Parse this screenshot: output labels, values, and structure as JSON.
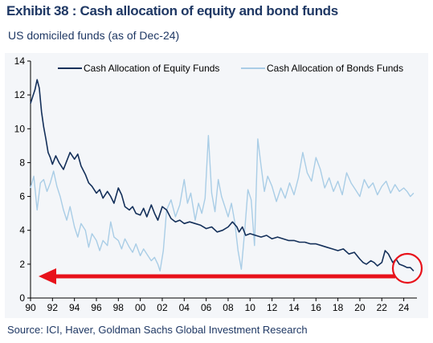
{
  "header": {
    "title": "Exhibit 38 : Cash allocation of equity and bond funds",
    "subtitle": "US domiciled funds (as of Dec-24)"
  },
  "footer": {
    "source": "Source: ICI, Haver, Goldman Sachs Global Investment Research"
  },
  "colors": {
    "equity": "#14305a",
    "bond": "#a9cde6",
    "arrow": "#e8121b",
    "title": "#1f3864"
  },
  "chart_data": {
    "type": "line",
    "title": "",
    "xlabel": "",
    "ylabel": "",
    "xlim": [
      1990,
      2025.2
    ],
    "ylim": [
      0,
      14
    ],
    "y_ticks": [
      0,
      2,
      4,
      6,
      8,
      10,
      12,
      14
    ],
    "x_ticks": [
      {
        "value": 1990,
        "label": "90"
      },
      {
        "value": 1992,
        "label": "92"
      },
      {
        "value": 1994,
        "label": "94"
      },
      {
        "value": 1996,
        "label": "96"
      },
      {
        "value": 1998,
        "label": "98"
      },
      {
        "value": 2000,
        "label": "00"
      },
      {
        "value": 2002,
        "label": "02"
      },
      {
        "value": 2004,
        "label": "04"
      },
      {
        "value": 2006,
        "label": "06"
      },
      {
        "value": 2008,
        "label": "08"
      },
      {
        "value": 2010,
        "label": "10"
      },
      {
        "value": 2012,
        "label": "12"
      },
      {
        "value": 2014,
        "label": "14"
      },
      {
        "value": 2016,
        "label": "16"
      },
      {
        "value": 2018,
        "label": "18"
      },
      {
        "value": 2020,
        "label": "20"
      },
      {
        "value": 2022,
        "label": "22"
      },
      {
        "value": 2024,
        "label": "24"
      }
    ],
    "legend_position": "top",
    "grid": false,
    "series": [
      {
        "name": "Cash Allocation of Equity Funds",
        "x": [
          1990,
          1990.2,
          1990.4,
          1990.6,
          1990.8,
          1991,
          1991.2,
          1991.4,
          1991.6,
          1991.8,
          1992,
          1992.3,
          1992.6,
          1993,
          1993.3,
          1993.6,
          1994,
          1994.3,
          1994.6,
          1995,
          1995.3,
          1995.6,
          1996,
          1996.3,
          1996.6,
          1997,
          1997.3,
          1997.6,
          1998,
          1998.3,
          1998.6,
          1999,
          1999.3,
          1999.6,
          2000,
          2000.3,
          2000.6,
          2001,
          2001.3,
          2001.6,
          2002,
          2002.4,
          2002.8,
          2003.2,
          2003.6,
          2004,
          2004.5,
          2005,
          2005.5,
          2006,
          2006.5,
          2007,
          2007.5,
          2008,
          2008.4,
          2008.8,
          2009,
          2009.3,
          2009.6,
          2010,
          2010.5,
          2011,
          2011.5,
          2012,
          2012.5,
          2013,
          2013.5,
          2014,
          2014.5,
          2015,
          2015.5,
          2016,
          2016.5,
          2017,
          2017.5,
          2018,
          2018.5,
          2019,
          2019.5,
          2020,
          2020.3,
          2020.6,
          2021,
          2021.3,
          2021.6,
          2022,
          2022.3,
          2022.6,
          2023,
          2023.3,
          2023.6,
          2024,
          2024.3,
          2024.6,
          2024.9
        ],
        "values": [
          11.5,
          11.9,
          12.3,
          12.9,
          12.4,
          11.0,
          10.1,
          9.4,
          8.6,
          8.3,
          7.9,
          8.4,
          8.0,
          7.6,
          8.1,
          8.6,
          8.2,
          8.5,
          7.8,
          7.3,
          6.8,
          6.6,
          6.2,
          6.4,
          5.9,
          6.3,
          6.0,
          5.6,
          6.5,
          6.1,
          5.4,
          5.2,
          5.4,
          5.0,
          4.9,
          5.3,
          4.8,
          5.5,
          5.0,
          4.6,
          5.4,
          5.2,
          4.7,
          4.5,
          4.6,
          4.4,
          4.5,
          4.4,
          4.3,
          4.1,
          4.2,
          3.9,
          4.0,
          4.2,
          4.5,
          4.2,
          3.9,
          4.2,
          3.7,
          3.8,
          3.7,
          3.6,
          3.7,
          3.5,
          3.6,
          3.5,
          3.4,
          3.4,
          3.3,
          3.3,
          3.2,
          3.2,
          3.1,
          3.0,
          2.9,
          2.8,
          2.9,
          2.6,
          2.7,
          2.3,
          2.1,
          2.0,
          2.2,
          2.1,
          1.9,
          2.1,
          2.8,
          2.6,
          2.1,
          2.3,
          2.0,
          1.9,
          1.8,
          1.8,
          1.6
        ]
      },
      {
        "name": "Cash Allocation of Bonds Funds",
        "x": [
          1990,
          1990.3,
          1990.6,
          1990.9,
          1991.2,
          1991.5,
          1991.8,
          1992.1,
          1992.4,
          1992.7,
          1993,
          1993.3,
          1993.6,
          1994,
          1994.3,
          1994.6,
          1995,
          1995.3,
          1995.6,
          1996,
          1996.3,
          1996.6,
          1997,
          1997.3,
          1997.6,
          1998,
          1998.3,
          1998.6,
          1999,
          1999.3,
          1999.6,
          2000,
          2000.3,
          2000.6,
          2001,
          2001.3,
          2001.6,
          2001.8,
          2002.1,
          2002.4,
          2002.8,
          2003.2,
          2003.6,
          2004,
          2004.3,
          2004.6,
          2005,
          2005.3,
          2005.6,
          2005.9,
          2006.2,
          2006.5,
          2006.8,
          2007.1,
          2007.4,
          2007.7,
          2008,
          2008.3,
          2008.6,
          2008.9,
          2009.2,
          2009.5,
          2009.8,
          2010.1,
          2010.4,
          2010.7,
          2011,
          2011.3,
          2011.6,
          2012,
          2012.4,
          2012.8,
          2013.2,
          2013.6,
          2014,
          2014.4,
          2014.8,
          2015.2,
          2015.6,
          2016,
          2016.4,
          2016.8,
          2017.2,
          2017.6,
          2018,
          2018.4,
          2018.8,
          2019.2,
          2019.6,
          2020,
          2020.4,
          2020.8,
          2021.2,
          2021.6,
          2022,
          2022.4,
          2022.8,
          2023.2,
          2023.6,
          2024,
          2024.3,
          2024.6,
          2024.9
        ],
        "values": [
          6.5,
          7.2,
          5.2,
          6.8,
          7.0,
          6.3,
          6.8,
          7.5,
          6.6,
          6.0,
          5.2,
          4.6,
          5.4,
          4.2,
          3.6,
          4.4,
          4.0,
          3.0,
          3.8,
          3.4,
          2.8,
          3.4,
          3.1,
          4.5,
          3.6,
          3.4,
          2.9,
          3.5,
          3.0,
          2.7,
          3.2,
          2.5,
          2.9,
          2.6,
          2.2,
          2.4,
          2.0,
          1.6,
          2.8,
          5.2,
          5.8,
          4.8,
          5.5,
          7.0,
          5.6,
          6.2,
          4.6,
          5.6,
          5.0,
          5.9,
          9.6,
          6.2,
          5.1,
          7.0,
          6.0,
          5.4,
          4.8,
          5.6,
          4.5,
          2.8,
          1.7,
          3.9,
          6.4,
          5.8,
          3.1,
          9.4,
          7.8,
          6.3,
          7.2,
          6.6,
          5.7,
          6.5,
          5.9,
          6.8,
          6.1,
          7.1,
          8.6,
          7.4,
          6.9,
          8.3,
          7.6,
          6.5,
          7.1,
          6.3,
          6.9,
          6.1,
          7.4,
          6.8,
          6.4,
          6.0,
          7.0,
          6.5,
          6.8,
          6.1,
          6.6,
          6.9,
          6.2,
          6.7,
          6.3,
          6.5,
          6.3,
          6.0,
          6.2
        ]
      }
    ]
  }
}
